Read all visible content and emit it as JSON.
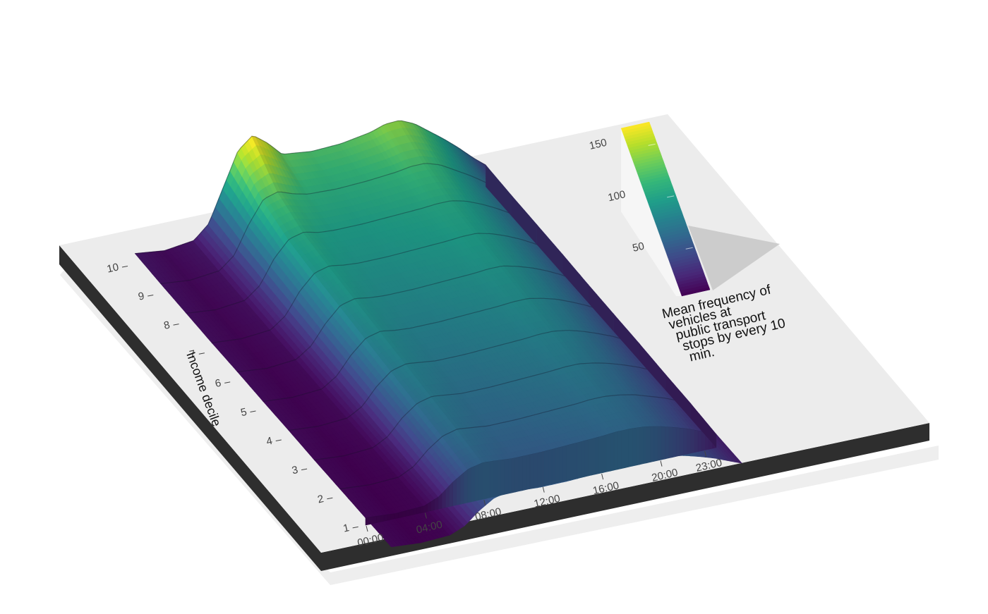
{
  "chart_data": {
    "type": "heatmap",
    "rendering": "3d-ridge-surface",
    "x": {
      "label": "",
      "tick_labels": [
        "00:00",
        "04:00",
        "08:00",
        "12:00",
        "16:00",
        "20:00",
        "23:00"
      ],
      "tick_hours": [
        0,
        4,
        8,
        12,
        16,
        20,
        23
      ],
      "range": [
        0,
        23.83
      ]
    },
    "y": {
      "label": "Income decile",
      "tick_labels": [
        "1",
        "2",
        "3",
        "4",
        "5",
        "6",
        "7",
        "8",
        "9",
        "10"
      ],
      "values": [
        1,
        2,
        3,
        4,
        5,
        6,
        7,
        8,
        9,
        10
      ]
    },
    "profile_hours": [
      0,
      2,
      4,
      5,
      6,
      7,
      8,
      9,
      10,
      12,
      14,
      16,
      17,
      18,
      19,
      20,
      21,
      22,
      23,
      23.83
    ],
    "series": [
      {
        "decile": 1,
        "values": [
          12,
          8,
          10,
          20,
          40,
          55,
          60,
          58,
          56,
          56,
          58,
          60,
          62,
          62,
          60,
          55,
          48,
          40,
          30,
          22
        ]
      },
      {
        "decile": 2,
        "values": [
          12,
          8,
          10,
          22,
          45,
          62,
          68,
          65,
          62,
          62,
          64,
          66,
          68,
          68,
          65,
          60,
          52,
          44,
          34,
          25
        ]
      },
      {
        "decile": 3,
        "values": [
          12,
          8,
          11,
          24,
          50,
          68,
          74,
          71,
          68,
          68,
          70,
          72,
          74,
          74,
          70,
          64,
          56,
          47,
          36,
          26
        ]
      },
      {
        "decile": 4,
        "values": [
          13,
          9,
          12,
          26,
          54,
          74,
          80,
          77,
          74,
          74,
          76,
          78,
          80,
          80,
          76,
          69,
          60,
          50,
          38,
          28
        ]
      },
      {
        "decile": 5,
        "values": [
          13,
          9,
          12,
          28,
          58,
          80,
          86,
          82,
          80,
          80,
          82,
          84,
          86,
          86,
          81,
          74,
          64,
          53,
          40,
          29
        ]
      },
      {
        "decile": 6,
        "values": [
          14,
          9,
          13,
          30,
          62,
          86,
          92,
          88,
          86,
          86,
          88,
          90,
          92,
          92,
          86,
          78,
          68,
          56,
          42,
          30
        ]
      },
      {
        "decile": 7,
        "values": [
          14,
          10,
          14,
          32,
          68,
          92,
          98,
          94,
          92,
          92,
          94,
          96,
          98,
          98,
          92,
          83,
          72,
          59,
          44,
          32
        ]
      },
      {
        "decile": 8,
        "values": [
          15,
          10,
          15,
          34,
          74,
          100,
          106,
          100,
          98,
          98,
          100,
          102,
          104,
          104,
          98,
          88,
          76,
          62,
          46,
          33
        ]
      },
      {
        "decile": 9,
        "values": [
          16,
          11,
          16,
          36,
          82,
          118,
          125,
          116,
          110,
          108,
          110,
          114,
          118,
          118,
          110,
          96,
          82,
          66,
          48,
          34
        ]
      },
      {
        "decile": 10,
        "values": [
          18,
          12,
          18,
          40,
          95,
          150,
          170,
          152,
          128,
          122,
          124,
          132,
          140,
          141,
          130,
          112,
          94,
          74,
          52,
          36
        ]
      }
    ],
    "colorbar": {
      "title": "Mean frequency of vehicles at public transport stops by every 10 min.",
      "tick_labels": [
        "50",
        "100",
        "150"
      ],
      "tick_values": [
        50,
        100,
        150
      ],
      "range": [
        8,
        170
      ]
    },
    "colors": {
      "palette": [
        "#440154",
        "#482878",
        "#3e4a89",
        "#31688e",
        "#26828e",
        "#1f9e89",
        "#35b779",
        "#6ece58",
        "#b5de2b",
        "#fde725"
      ],
      "base_top": "#ececec",
      "base_side": "#2e2e2e"
    },
    "grid": false,
    "legend_position": "right"
  }
}
